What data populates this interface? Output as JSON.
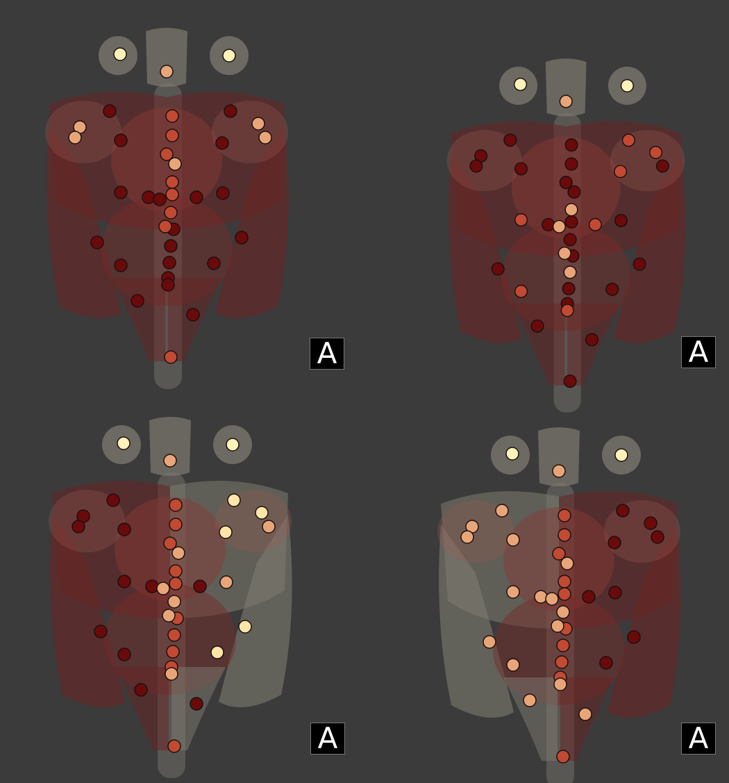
{
  "figure": {
    "background": "#3b3b3b",
    "palette": {
      "body_grey": "#7d7b70",
      "muscle_dark": "#6a2424",
      "muscle_light": "#8a4a44",
      "node_highlight": "#fff2b8",
      "node_light": "#e8a678",
      "node_mid": "#c24a32",
      "node_dark": "#6a0a0a"
    },
    "panels": [
      {
        "id": "top-left",
        "badge_label": "A",
        "nodes": 44
      },
      {
        "id": "top-right",
        "badge_label": "A",
        "nodes": 48
      },
      {
        "id": "bottom-left",
        "badge_label": "A",
        "nodes": 43
      },
      {
        "id": "bottom-right",
        "badge_label": "A",
        "nodes": 45
      }
    ]
  }
}
